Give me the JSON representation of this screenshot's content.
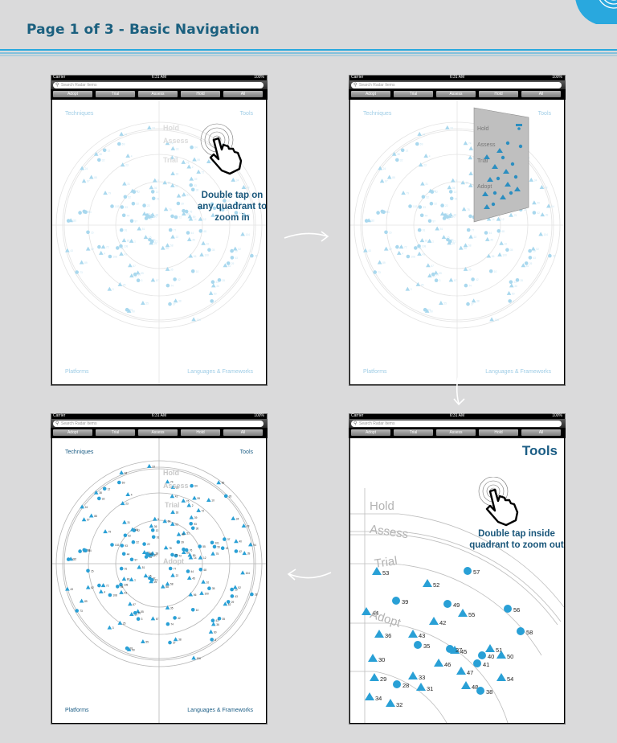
{
  "page": {
    "title": "Page 1 of 3 - Basic Navigation"
  },
  "device": {
    "carrier": "Carrier",
    "time": "6:31 AM",
    "battery": "100%",
    "search_placeholder": "Search Radar Items",
    "tabs": [
      "Adopt",
      "Trial",
      "Assess",
      "Hold",
      "All"
    ]
  },
  "quadrants": {
    "top_left": "Techniques",
    "top_right": "Tools",
    "bottom_left": "Platforms",
    "bottom_right": "Languages & Frameworks"
  },
  "rings": [
    "Hold",
    "Assess",
    "Trial",
    "Adopt"
  ],
  "screens": {
    "s1": {
      "callout": "Double tap on any quadrant to zoom in"
    },
    "s4": {
      "title": "Tools",
      "callout": "Double tap inside quadrant to zoom out"
    }
  },
  "blips": [
    {
      "n": "53",
      "shape": "triangle"
    },
    {
      "n": "52",
      "shape": "triangle"
    },
    {
      "n": "57",
      "shape": "circle"
    },
    {
      "n": "39",
      "shape": "circle"
    },
    {
      "n": "49",
      "shape": "circle"
    },
    {
      "n": "44",
      "shape": "triangle"
    },
    {
      "n": "55",
      "shape": "triangle"
    },
    {
      "n": "56",
      "shape": "circle"
    },
    {
      "n": "42",
      "shape": "triangle"
    },
    {
      "n": "36",
      "shape": "triangle"
    },
    {
      "n": "43",
      "shape": "triangle"
    },
    {
      "n": "58",
      "shape": "circle"
    },
    {
      "n": "35",
      "shape": "circle"
    },
    {
      "n": "45",
      "shape": "triangle"
    },
    {
      "n": "37",
      "shape": "circle"
    },
    {
      "n": "40",
      "shape": "circle"
    },
    {
      "n": "51",
      "shape": "triangle"
    },
    {
      "n": "30",
      "shape": "triangle"
    },
    {
      "n": "50",
      "shape": "triangle"
    },
    {
      "n": "41",
      "shape": "circle"
    },
    {
      "n": "46",
      "shape": "triangle"
    },
    {
      "n": "47",
      "shape": "triangle"
    },
    {
      "n": "33",
      "shape": "triangle"
    },
    {
      "n": "29",
      "shape": "triangle"
    },
    {
      "n": "54",
      "shape": "triangle"
    },
    {
      "n": "28",
      "shape": "circle"
    },
    {
      "n": "31",
      "shape": "triangle"
    },
    {
      "n": "48",
      "shape": "triangle"
    },
    {
      "n": "34",
      "shape": "triangle"
    },
    {
      "n": "38",
      "shape": "circle"
    },
    {
      "n": "32",
      "shape": "triangle"
    }
  ],
  "colors": {
    "title": "#1b607f",
    "accent": "#29a0d6",
    "callout": "#19567a",
    "pale_blip": "#a9d8ee"
  }
}
